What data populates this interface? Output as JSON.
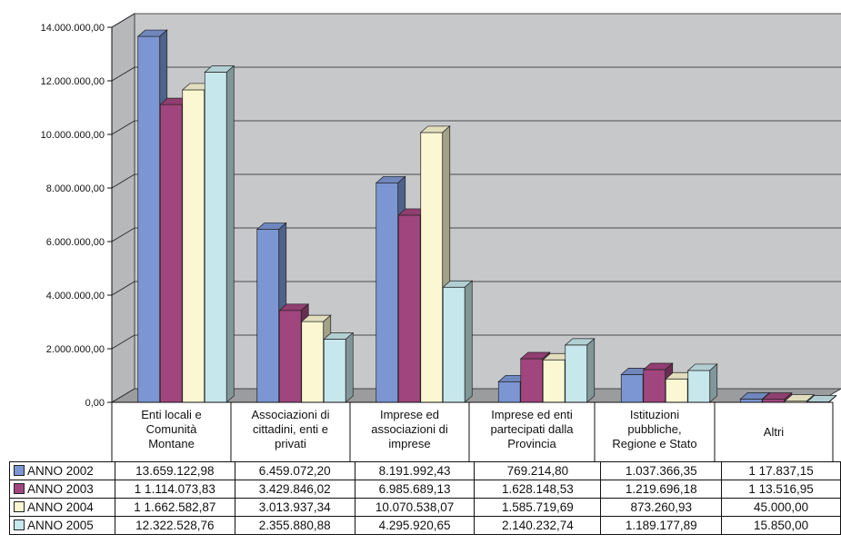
{
  "chart_data": {
    "type": "bar",
    "style": "3d clustered column",
    "categories": [
      "Enti locali e Comunità Montane",
      "Associazioni di cittadini, enti e privati",
      "Imprese ed associazioni di imprese",
      "Imprese ed enti partecipati dalla Provincia",
      "Istituzioni pubbliche, Regione e Stato",
      "Altri"
    ],
    "category_lines": [
      [
        "Enti locali e",
        "Comunità",
        "Montane"
      ],
      [
        "Associazioni di",
        "cittadini, enti e",
        "privati"
      ],
      [
        "Imprese ed",
        "associazioni di",
        "imprese"
      ],
      [
        "Imprese ed enti",
        "partecipati dalla",
        "Provincia"
      ],
      [
        "Istituzioni",
        "pubbliche,",
        "Regione e Stato"
      ],
      [
        "Altri"
      ]
    ],
    "series": [
      {
        "name": "ANNO 2002",
        "color": "#7b96d2",
        "values": [
          13659122.98,
          6459072.2,
          8191992.43,
          769214.8,
          1037366.35,
          117837.15
        ],
        "labels": [
          "13.659.122,98",
          "6.459.072,20",
          "8.191.992,43",
          "769.214,80",
          "1.037.366,35",
          "1 17.837,15"
        ]
      },
      {
        "name": "ANNO 2003",
        "color": "#a1457e",
        "values": [
          11114073.83,
          3429846.02,
          6985689.13,
          1628148.53,
          1219696.18,
          113516.95
        ],
        "labels": [
          "1 1.114.073,83",
          "3.429.846,02",
          "6.985.689,13",
          "1.628.148,53",
          "1.219.696,18",
          "1 13.516,95"
        ]
      },
      {
        "name": "ANNO 2004",
        "color": "#fbf7d2",
        "values": [
          11662582.87,
          3013937.34,
          10070538.07,
          1585719.69,
          873260.93,
          45000.0
        ],
        "labels": [
          "1 1.662.582,87",
          "3.013.937,34",
          "10.070.538,07",
          "1.585.719,69",
          "873.260,93",
          "45.000,00"
        ]
      },
      {
        "name": "ANNO 2005",
        "color": "#c6e7ec",
        "values": [
          12322528.76,
          2355880.88,
          4295920.65,
          2140232.74,
          1189177.89,
          15850.0
        ],
        "labels": [
          "12.322.528,76",
          "2.355.880,88",
          "4.295.920,65",
          "2.140.232,74",
          "1.189.177,89",
          "15.850,00"
        ]
      }
    ],
    "yticks": [
      "0,00",
      "2.000.000,00",
      "4.000.000,00",
      "6.000.000,00",
      "8.000.000,00",
      "10.000.000,00",
      "12.000.000,00",
      "14.000.000,00"
    ],
    "ylim": [
      0,
      14000000
    ],
    "grid": true,
    "legend": "data table below chart",
    "colors": {
      "wall": "#c7c8ca",
      "floor": "#9b9c9e",
      "grid": "#222222"
    }
  }
}
